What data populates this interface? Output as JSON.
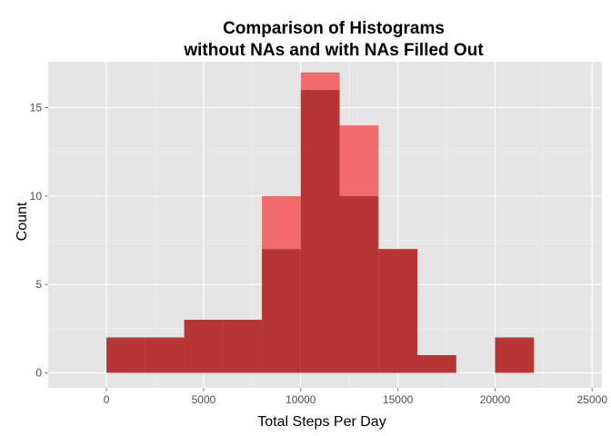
{
  "chart_data": {
    "type": "bar",
    "title_lines": [
      "Comparison of Histograms",
      "without NAs and with NAs Filled Out"
    ],
    "xlabel": "Total Steps Per Day",
    "ylabel": "Count",
    "xlim": [
      -3000,
      25500
    ],
    "ylim": [
      -0.85,
      17.6
    ],
    "x_ticks": [
      0,
      5000,
      10000,
      15000,
      20000,
      25000
    ],
    "x_tick_labels": [
      "0",
      "5000",
      "10000",
      "15000",
      "20000",
      "25000"
    ],
    "y_ticks": [
      0,
      5,
      10,
      15
    ],
    "y_tick_labels": [
      "0",
      "5",
      "10",
      "15"
    ],
    "grid": true,
    "legend": "none",
    "bin_width": 2000,
    "series": [
      {
        "bins": [
          {
            "x0": 0,
            "x1": 2000,
            "count": 2
          },
          {
            "x0": 2000,
            "x1": 4000,
            "count": 2
          },
          {
            "x0": 4000,
            "x1": 6000,
            "count": 3
          },
          {
            "x0": 6000,
            "x1": 8000,
            "count": 3
          },
          {
            "x0": 8000,
            "x1": 10000,
            "count": 10
          },
          {
            "x0": 10000,
            "x1": 12000,
            "count": 17
          },
          {
            "x0": 12000,
            "x1": 14000,
            "count": 14
          },
          {
            "x0": 14000,
            "x1": 16000,
            "count": 7
          },
          {
            "x0": 16000,
            "x1": 18000,
            "count": 1
          },
          {
            "x0": 18000,
            "x1": 20000,
            "count": 0
          },
          {
            "x0": 20000,
            "x1": 22000,
            "count": 2
          }
        ],
        "color": "#f26c6c"
      },
      {
        "bins": [
          {
            "x0": 0,
            "x1": 2000,
            "count": 2
          },
          {
            "x0": 2000,
            "x1": 4000,
            "count": 2
          },
          {
            "x0": 4000,
            "x1": 6000,
            "count": 3
          },
          {
            "x0": 6000,
            "x1": 8000,
            "count": 3
          },
          {
            "x0": 8000,
            "x1": 10000,
            "count": 7
          },
          {
            "x0": 10000,
            "x1": 12000,
            "count": 16
          },
          {
            "x0": 12000,
            "x1": 14000,
            "count": 10
          },
          {
            "x0": 14000,
            "x1": 16000,
            "count": 7
          },
          {
            "x0": 16000,
            "x1": 18000,
            "count": 1
          },
          {
            "x0": 18000,
            "x1": 20000,
            "count": 0
          },
          {
            "x0": 20000,
            "x1": 22000,
            "count": 2
          }
        ],
        "color": "#b83536"
      }
    ],
    "colors": {
      "panel_background": "#e5e5e5",
      "grid_major": "#ffffff",
      "grid_minor": "#f2f2f2"
    }
  }
}
